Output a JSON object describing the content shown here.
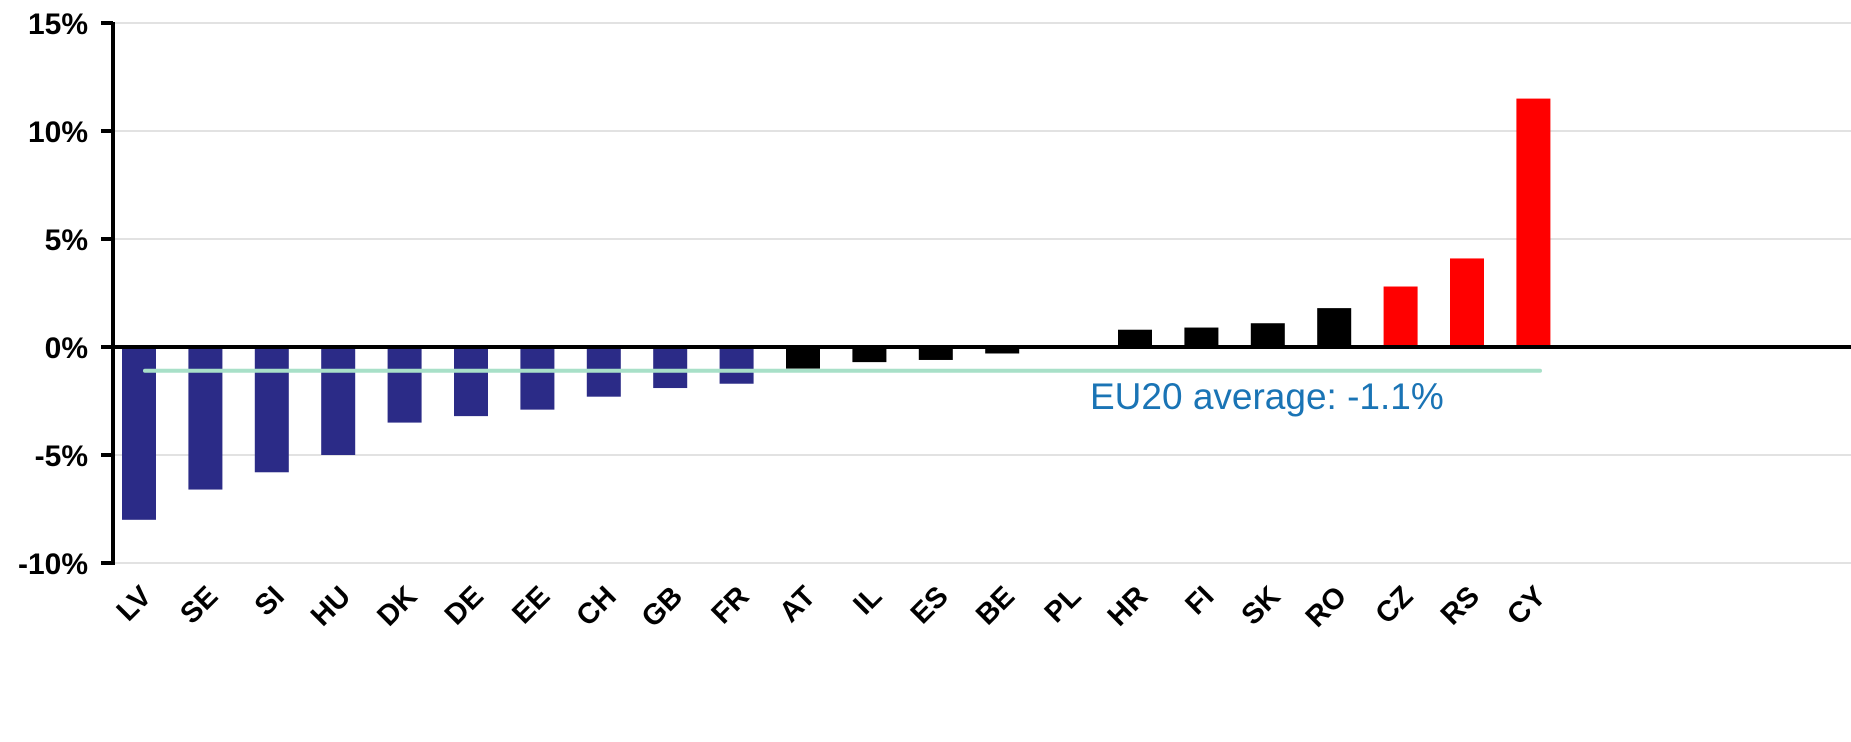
{
  "chart_data": {
    "type": "bar",
    "title": "",
    "xlabel": "",
    "ylabel": "",
    "ylim": [
      -10,
      15
    ],
    "yticks": [
      15,
      10,
      5,
      0,
      -5,
      -10
    ],
    "ytick_labels": [
      "15%",
      "10%",
      "5%",
      "0%",
      "-5%",
      "-10%"
    ],
    "grid": true,
    "categories": [
      "LV",
      "SE",
      "SI",
      "HU",
      "DK",
      "DE",
      "EE",
      "CH",
      "GB",
      "FR",
      "AT",
      "IL",
      "ES",
      "BE",
      "PL",
      "HR",
      "FI",
      "SK",
      "RO",
      "CZ",
      "RS",
      "CY"
    ],
    "values": [
      -8.0,
      -6.6,
      -5.8,
      -5.0,
      -3.5,
      -3.2,
      -2.9,
      -2.3,
      -1.9,
      -1.7,
      -1.0,
      -0.7,
      -0.6,
      -0.3,
      0.0,
      0.8,
      0.9,
      1.1,
      1.8,
      2.8,
      4.1,
      11.5
    ],
    "bar_colors": [
      "#2b2b87",
      "#2b2b87",
      "#2b2b87",
      "#2b2b87",
      "#2b2b87",
      "#2b2b87",
      "#2b2b87",
      "#2b2b87",
      "#2b2b87",
      "#2b2b87",
      "#000000",
      "#000000",
      "#000000",
      "#000000",
      "#000000",
      "#000000",
      "#000000",
      "#000000",
      "#000000",
      "#ff0000",
      "#ff0000",
      "#ff0000"
    ],
    "reference_line": {
      "label": "EU20 average: -1.1%",
      "value": -1.1,
      "color": "#a8e0c8",
      "label_color": "#1a74b5"
    }
  }
}
